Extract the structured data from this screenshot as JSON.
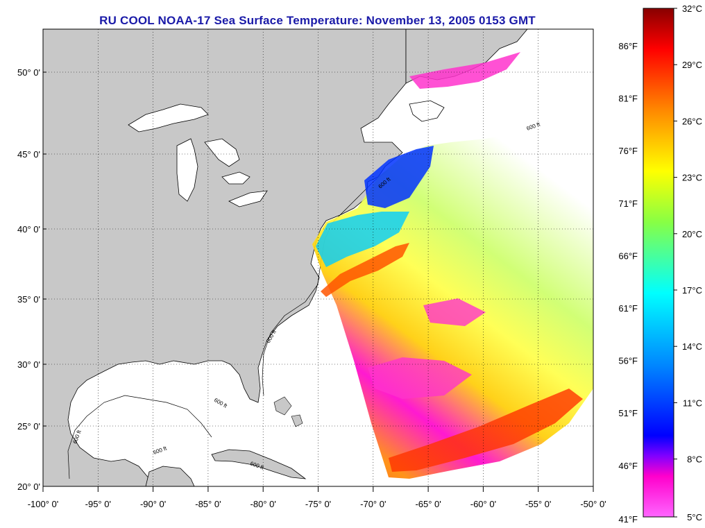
{
  "title": "RU COOL  NOAA-17  Sea Surface Temperature:  November 13, 2005 0153 GMT",
  "map": {
    "lat_labels": [
      "50° 0'",
      "45° 0'",
      "40° 0'",
      "35° 0'",
      "30° 0'",
      "25° 0'",
      "20° 0'"
    ],
    "lon_labels": [
      "-100° 0'",
      "-95° 0'",
      "-90° 0'",
      "-85° 0'",
      "-80° 0'",
      "-75° 0'",
      "-70° 0'",
      "-65° 0'",
      "-60° 0'",
      "-55° 0'",
      "-50° 0'"
    ],
    "lat_range": [
      20,
      52.5
    ],
    "lon_range": [
      -100,
      -50
    ],
    "contour_label": "600 ft",
    "colors": {
      "land": "#c8c8c8",
      "water_no_data": "#ffffff",
      "frame": "#000000"
    }
  },
  "colorbar": {
    "fahrenheit_labels": [
      "86°F",
      "81°F",
      "76°F",
      "71°F",
      "66°F",
      "61°F",
      "56°F",
      "51°F",
      "46°F",
      "41°F"
    ],
    "celsius_labels": [
      "32°C",
      "29°C",
      "26°C",
      "23°C",
      "20°C",
      "17°C",
      "14°C",
      "11°C",
      "8°C",
      "5°C"
    ],
    "range_c": [
      5,
      32
    ],
    "gradient_colors": [
      "#ff66ff",
      "#ff00cc",
      "#8000ff",
      "#0000ff",
      "#0088ff",
      "#00ffff",
      "#88ff44",
      "#ffff00",
      "#ff8800",
      "#ff0000",
      "#880000"
    ]
  }
}
